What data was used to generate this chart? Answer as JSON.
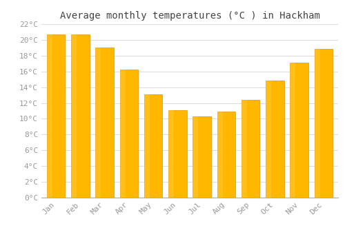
{
  "title": "Average monthly temperatures (°C ) in Hackham",
  "months": [
    "Jan",
    "Feb",
    "Mar",
    "Apr",
    "May",
    "Jun",
    "Jul",
    "Aug",
    "Sep",
    "Oct",
    "Nov",
    "Dec"
  ],
  "values": [
    20.7,
    20.7,
    19.0,
    16.2,
    13.1,
    11.1,
    10.3,
    10.9,
    12.4,
    14.8,
    17.1,
    18.9
  ],
  "bar_color_top": "#FFB700",
  "bar_color_bottom": "#FFA000",
  "bar_edge_color": "#E89000",
  "background_color": "#FFFFFF",
  "grid_color": "#DDDDDD",
  "tick_label_color": "#999999",
  "title_color": "#444444",
  "ylim": [
    0,
    22
  ],
  "ytick_step": 2,
  "title_fontsize": 10,
  "tick_fontsize": 8,
  "bar_width": 0.75
}
